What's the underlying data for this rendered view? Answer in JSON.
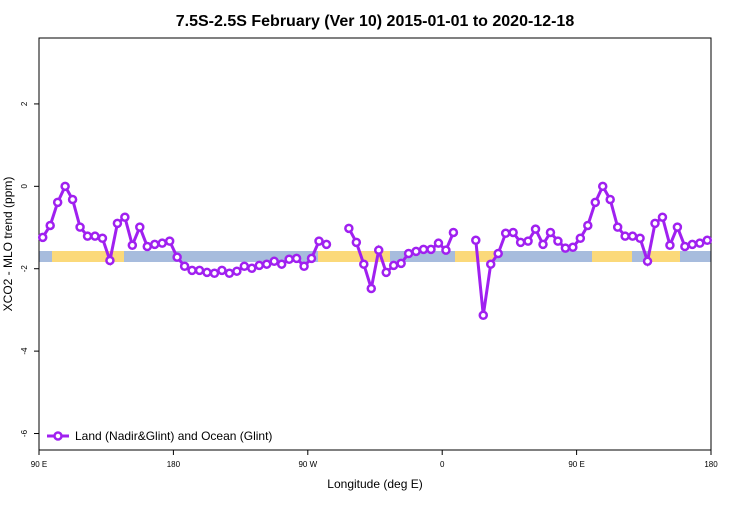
{
  "chart_data": {
    "type": "line",
    "title": "7.5S-2.5S February (Ver 10)   2015-01-01 to 2020-12-18",
    "xlabel": "Longitude (deg E)",
    "ylabel": "XCO2 - MLO trend (ppm)",
    "x": [
      92.5,
      97.5,
      102.5,
      107.5,
      112.5,
      117.5,
      122.5,
      127.5,
      132.5,
      137.5,
      142.5,
      147.5,
      152.5,
      157.5,
      162.5,
      167.5,
      172.5,
      177.5,
      182.5,
      187.5,
      192.5,
      197.5,
      202.5,
      207.5,
      212.5,
      217.5,
      222.5,
      227.5,
      232.5,
      237.5,
      242.5,
      247.5,
      252.5,
      257.5,
      262.5,
      267.5,
      272.5,
      277.5,
      282.5,
      287.5,
      292.5,
      297.5,
      302.5,
      307.5,
      312.5,
      317.5,
      322.5,
      327.5,
      332.5,
      337.5,
      342.5,
      347.5,
      352.5,
      357.5,
      362.5,
      367.5,
      372.5,
      377.5,
      382.5,
      387.5,
      392.5,
      397.5,
      402.5,
      407.5,
      412.5,
      417.5,
      422.5,
      427.5,
      432.5,
      437.5,
      442.5,
      447.5,
      452.5,
      457.5,
      462.5,
      467.5,
      472.5,
      477.5,
      482.5,
      487.5,
      492.5,
      497.5,
      502.5,
      507.5,
      512.5,
      517.5,
      522.5,
      527.5,
      532.5,
      537.5
    ],
    "series": [
      {
        "name": "Land (Nadir&Glint) and Ocean (Glint)",
        "color": "#a020f0",
        "values": [
          -1.24,
          -0.95,
          -0.39,
          0,
          -0.32,
          -0.99,
          -1.21,
          -1.21,
          -1.26,
          -1.8,
          -0.9,
          -0.75,
          -1.43,
          -0.99,
          -1.46,
          -1.41,
          -1.38,
          -1.33,
          -1.72,
          -1.94,
          -2.04,
          -2.04,
          -2.09,
          -2.11,
          -2.04,
          -2.11,
          -2.06,
          -1.94,
          -1.99,
          -1.92,
          -1.89,
          -1.82,
          -1.89,
          -1.77,
          -1.75,
          -1.94,
          -1.75,
          -1.33,
          -1.41,
          null,
          null,
          -1.02,
          -1.36,
          -1.89,
          -2.48,
          -1.55,
          -2.09,
          -1.92,
          -1.87,
          -1.63,
          -1.58,
          -1.53,
          -1.53,
          -1.38,
          -1.55,
          -1.12,
          null,
          null,
          -1.31,
          -3.13,
          -1.89,
          -1.63,
          -1.14,
          -1.12,
          -1.36,
          -1.33,
          -1.04,
          -1.41,
          -1.12,
          -1.33,
          -1.5,
          -1.48,
          -1.26,
          -0.95,
          -0.39,
          0,
          -0.32,
          -0.99,
          -1.21,
          -1.21,
          -1.26,
          -1.82,
          -0.9,
          -0.75,
          -1.43,
          -0.99,
          -1.46,
          -1.41,
          -1.38,
          -1.31
        ]
      }
    ],
    "xlim": [
      90,
      540
    ],
    "xticks": [
      {
        "value": 90,
        "label": "90 E"
      },
      180,
      {
        "value": 270,
        "label": "90 W"
      },
      {
        "value": 360,
        "label": "0"
      },
      {
        "value": 450,
        "label": "90 E"
      },
      {
        "value": 540,
        "label": "180"
      }
    ],
    "ylim": [
      -6.4,
      3.6
    ],
    "yticks": [
      2,
      0,
      -2,
      -4,
      -6
    ],
    "legend": "bottom-left"
  }
}
